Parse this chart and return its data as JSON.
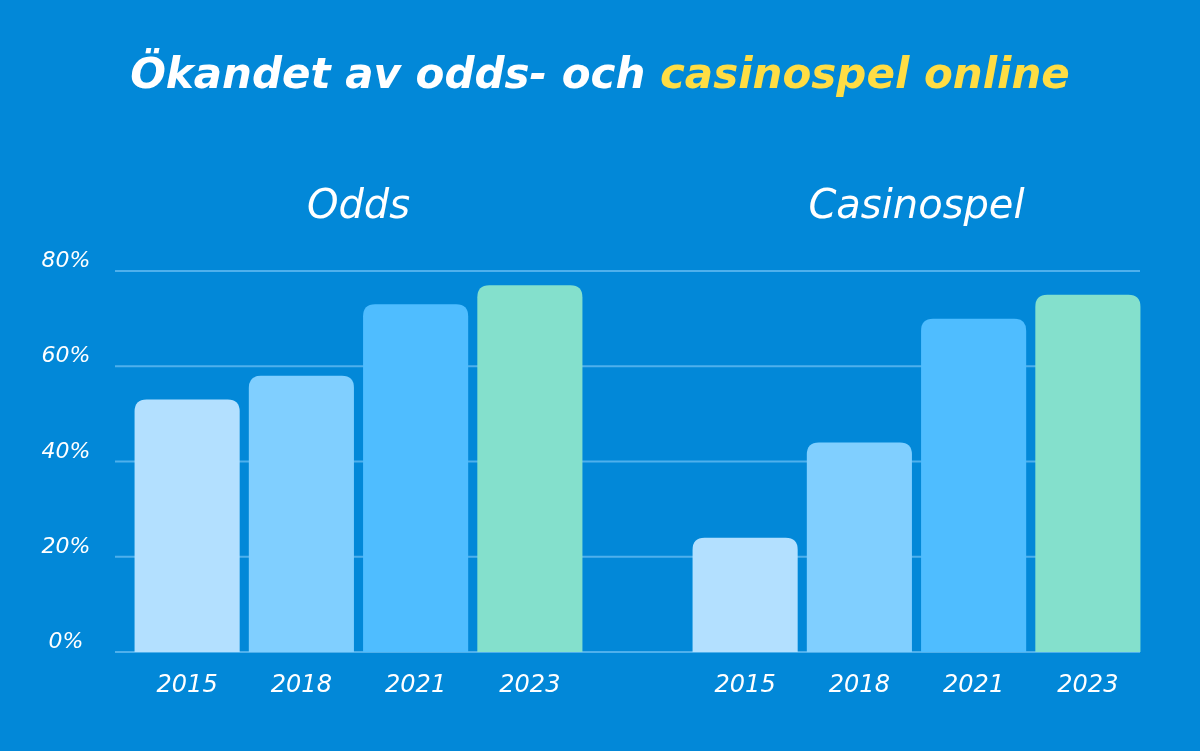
{
  "chart_data": [
    {
      "type": "bar",
      "title": "Ökandet av odds- och casinospel online",
      "subtitle": "Odds",
      "categories": [
        "2015",
        "2018",
        "2021",
        "2023"
      ],
      "values": [
        53,
        58,
        73,
        77
      ],
      "colors": [
        "#b3e0ff",
        "#80cfff",
        "#4fbdff",
        "#84e0cc"
      ],
      "ylim": [
        0,
        80
      ],
      "yticks": [
        {
          "value": 0,
          "label": "0%"
        },
        {
          "value": 20,
          "label": "20%"
        },
        {
          "value": 40,
          "label": "40%"
        },
        {
          "value": 60,
          "label": "60%"
        },
        {
          "value": 80,
          "label": "80%"
        }
      ],
      "grid": "y"
    },
    {
      "type": "bar",
      "subtitle": "Casinospel",
      "categories": [
        "2015",
        "2018",
        "2021",
        "2023"
      ],
      "values": [
        24,
        44,
        70,
        75
      ],
      "colors": [
        "#b3e0ff",
        "#80cfff",
        "#4fbdff",
        "#84e0cc"
      ],
      "ylim": [
        0,
        80
      ],
      "yticks": [
        {
          "value": 0,
          "label": null
        },
        {
          "value": 20,
          "label": null
        },
        {
          "value": 40,
          "label": null
        },
        {
          "value": 60,
          "label": null
        },
        {
          "value": 80,
          "label": null
        }
      ],
      "grid": "y",
      "tick_labels": "x"
    }
  ]
}
